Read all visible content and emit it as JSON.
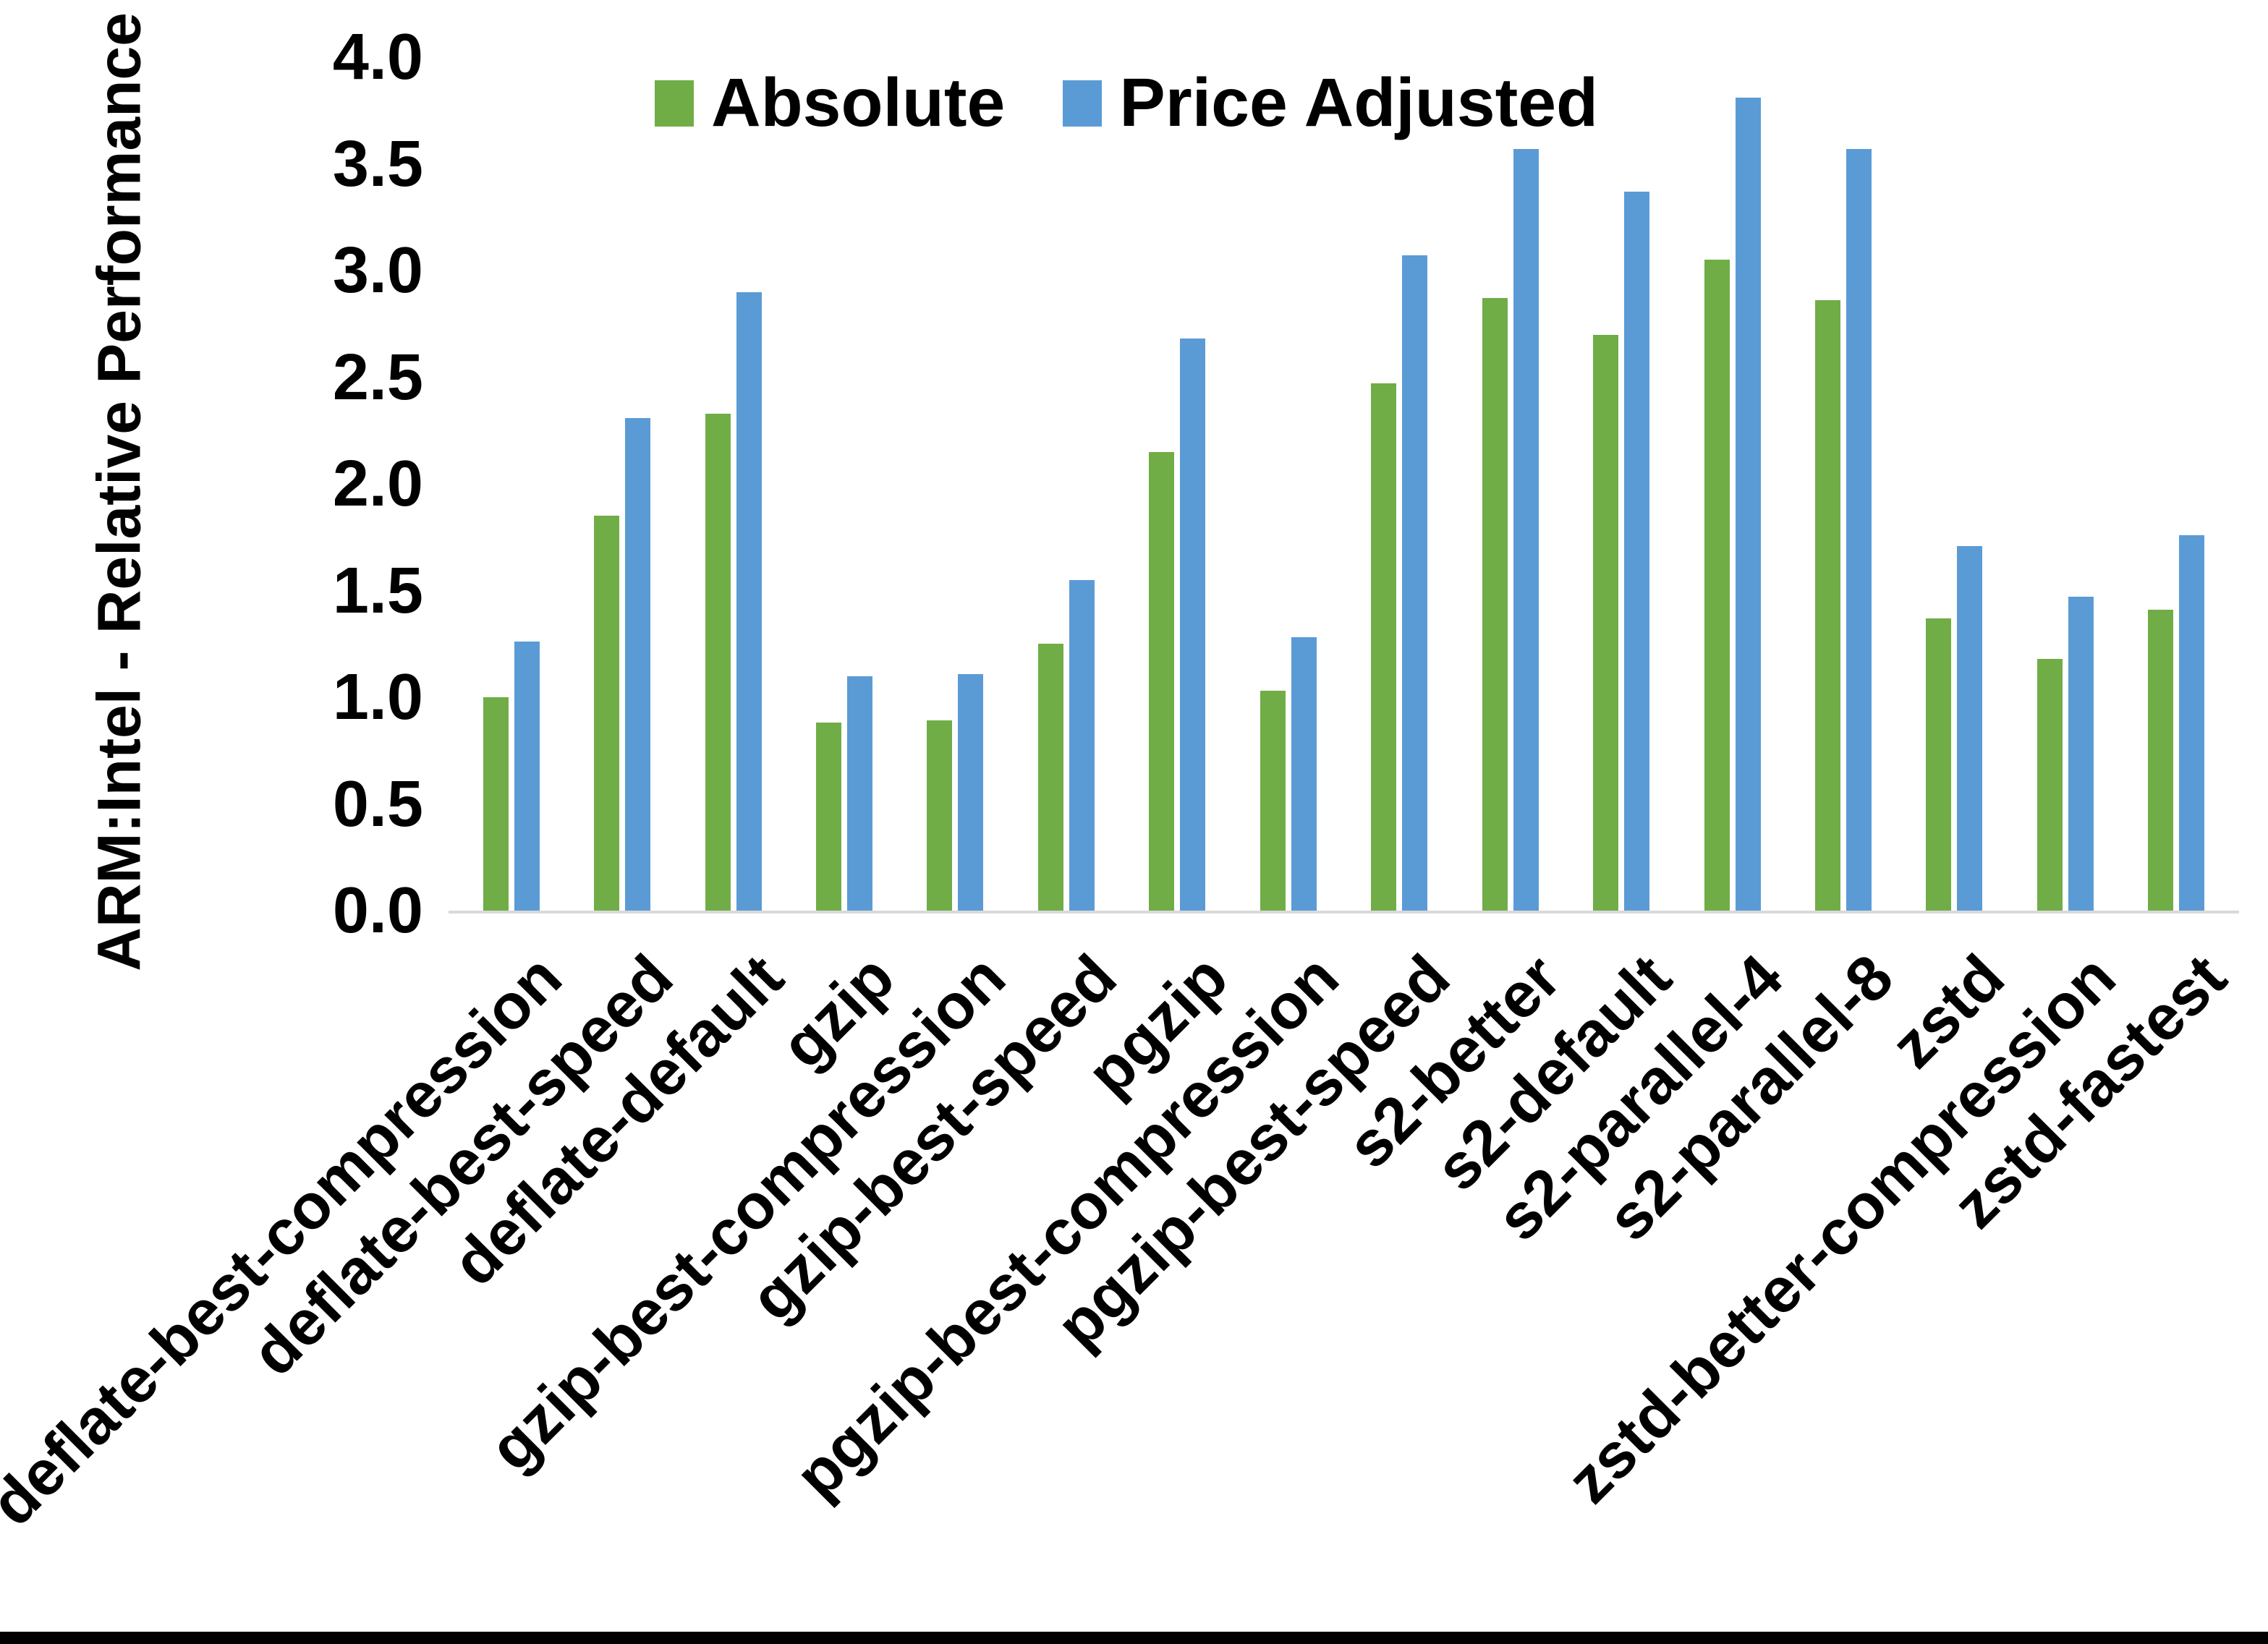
{
  "figure": {
    "y_axis_title": "ARM:Intel - Relative Performance",
    "background_color": "#ffffff",
    "bottom_border_color": "#000000",
    "axis_line_color": "#d9d9d9"
  },
  "legend": [
    {
      "label": "Absolute",
      "color": "#70ad47"
    },
    {
      "label": "Price Adjusted",
      "color": "#5b9bd5"
    }
  ],
  "chart_data": {
    "type": "bar",
    "title": "",
    "xlabel": "",
    "ylabel": "ARM:Intel - Relative Performance",
    "ylim": [
      0,
      4
    ],
    "ytick_step": 0.5,
    "ytick_labels": [
      "0.0",
      "0.5",
      "1.0",
      "1.5",
      "2.0",
      "2.5",
      "3.0",
      "3.5",
      "4.0"
    ],
    "grid": false,
    "legend_position": "top-center",
    "categories": [
      "deflate-best-compression",
      "deflate-best-speed",
      "deflate-default",
      "gzip",
      "gzip-best-compression",
      "gzip-best-speed",
      "pgzip",
      "pgzip-best-compression",
      "pgzip-best-speed",
      "s2-better",
      "s2-default",
      "s2-parallel-4",
      "s2-parallel-8",
      "zstd",
      "zstd-better-compression",
      "zstd-fastest"
    ],
    "series": [
      {
        "name": "Absolute",
        "color": "#70ad47",
        "values": [
          1.0,
          1.85,
          2.33,
          0.88,
          0.89,
          1.25,
          2.15,
          1.03,
          2.47,
          2.87,
          2.7,
          3.05,
          2.86,
          1.37,
          1.18,
          1.41
        ]
      },
      {
        "name": "Price Adjusted",
        "color": "#5b9bd5",
        "values": [
          1.26,
          2.31,
          2.9,
          1.1,
          1.11,
          1.55,
          2.68,
          1.28,
          3.07,
          3.57,
          3.37,
          3.81,
          3.57,
          1.71,
          1.47,
          1.76
        ]
      }
    ]
  }
}
